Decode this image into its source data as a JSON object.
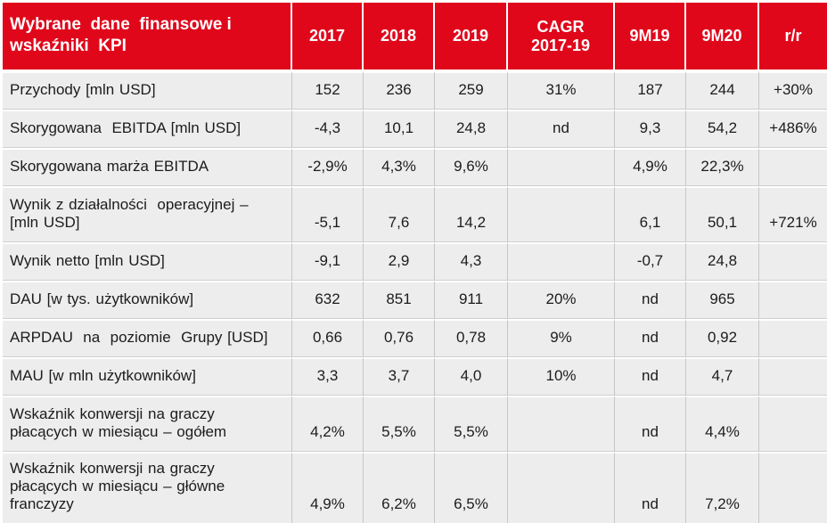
{
  "table": {
    "header": {
      "title": "Wybrane  dane  finansowe i\nwskaźniki  KPI",
      "columns": [
        "2017",
        "2018",
        "2019",
        "CAGR\n2017-19",
        "9M19",
        "9M20",
        "r/r"
      ]
    },
    "rows": [
      {
        "label": "Przychody [mln USD]",
        "values": [
          "152",
          "236",
          "259",
          "31%",
          "187",
          "244",
          "+30%"
        ]
      },
      {
        "label": "Skorygowana  EBITDA [mln USD]",
        "values": [
          "-4,3",
          "10,1",
          "24,8",
          "nd",
          "9,3",
          "54,2",
          "+486%"
        ]
      },
      {
        "label": "Skorygowana marża EBITDA",
        "values": [
          "-2,9%",
          "4,3%",
          "9,6%",
          "",
          "4,9%",
          "22,3%",
          ""
        ]
      },
      {
        "label": "Wynik z działalności  operacyjnej –\n[mln USD]",
        "values": [
          "-5,1",
          "7,6",
          "14,2",
          "",
          "6,1",
          "50,1",
          "+721%"
        ]
      },
      {
        "label": "Wynik netto [mln USD]",
        "values": [
          "-9,1",
          "2,9",
          "4,3",
          "",
          "-0,7",
          "24,8",
          ""
        ]
      },
      {
        "label": "DAU [w tys. użytkowników]",
        "values": [
          "632",
          "851",
          "911",
          "20%",
          "nd",
          "965",
          ""
        ]
      },
      {
        "label": "ARPDAU  na  poziomie  Grupy [USD]",
        "values": [
          "0,66",
          "0,76",
          "0,78",
          "9%",
          "nd",
          "0,92",
          ""
        ]
      },
      {
        "label": "MAU [w mln użytkowników]",
        "values": [
          "3,3",
          "3,7",
          "4,0",
          "10%",
          "nd",
          "4,7",
          ""
        ]
      },
      {
        "label": "Wskaźnik konwersji na graczy\npłacących w miesiącu – ogółem",
        "values": [
          "4,2%",
          "5,5%",
          "5,5%",
          "",
          "nd",
          "4,4%",
          ""
        ]
      },
      {
        "label": "Wskaźnik konwersji na graczy\npłacących w miesiącu – główne\nfranczyzy",
        "values": [
          "4,9%",
          "6,2%",
          "6,5%",
          "",
          "nd",
          "7,2%",
          ""
        ]
      }
    ],
    "colors": {
      "header_bg": "#E0071B",
      "header_text": "#FFFFFF",
      "row_bg": "#EDEDED",
      "grid_line": "#C6C6C6",
      "text": "#1C1C1C"
    }
  }
}
